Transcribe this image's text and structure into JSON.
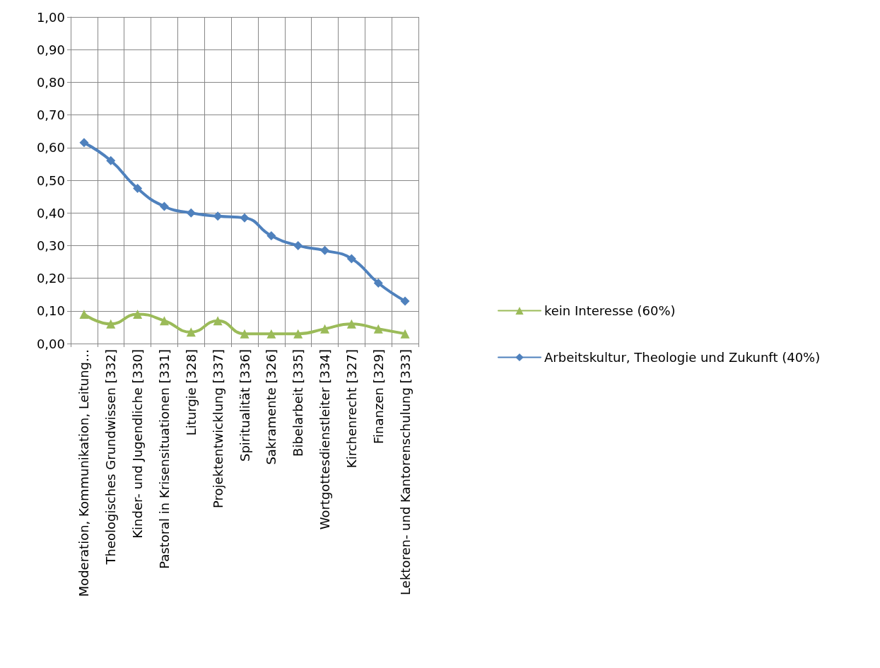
{
  "chart_data": {
    "type": "line",
    "categories": [
      "Moderation, Kommunikation, Leitung…",
      "Theologisches Grundwissen [332]",
      "Kinder- und Jugendliche [330]",
      "Pastoral in Krisensituationen [331]",
      "Liturgie [328]",
      "Projektentwicklung [337]",
      "Spiritualität [336]",
      "Sakramente [326]",
      "Bibelarbeit [335]",
      "Wortgottesdienstleiter [334]",
      "Kirchenrecht [327]",
      "Finanzen [329]",
      "Lektoren- und Kantorenschulung [333]"
    ],
    "series": [
      {
        "name": "kein Interesse (60%)",
        "color": "#9bbb59",
        "marker": "triangle",
        "values": [
          0.09,
          0.06,
          0.09,
          0.07,
          0.035,
          0.07,
          0.03,
          0.03,
          0.03,
          0.045,
          0.06,
          0.045,
          0.03
        ]
      },
      {
        "name": "Arbeitskultur, Theologie und Zukunft (40%)",
        "color": "#4f81bd",
        "marker": "diamond",
        "values": [
          0.615,
          0.56,
          0.475,
          0.42,
          0.4,
          0.39,
          0.385,
          0.33,
          0.3,
          0.285,
          0.26,
          0.185,
          0.13
        ]
      }
    ],
    "ylim": [
      0,
      1
    ],
    "yticks": [
      {
        "value": 0,
        "label": "0,00"
      },
      {
        "value": 0.1,
        "label": "0,10"
      },
      {
        "value": 0.2,
        "label": "0,20"
      },
      {
        "value": 0.3,
        "label": "0,30"
      },
      {
        "value": 0.4,
        "label": "0,40"
      },
      {
        "value": 0.5,
        "label": "0,50"
      },
      {
        "value": 0.6,
        "label": "0,60"
      },
      {
        "value": 0.7,
        "label": "0,70"
      },
      {
        "value": 0.8,
        "label": "0,80"
      },
      {
        "value": 0.9,
        "label": "0,90"
      },
      {
        "value": 1,
        "label": "1,00"
      }
    ],
    "grid": true,
    "legend": "right"
  }
}
